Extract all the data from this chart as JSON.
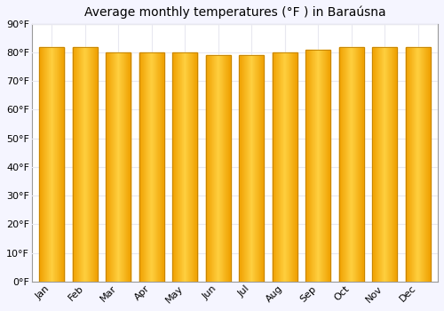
{
  "title": "Average monthly temperatures (°F ) in Baraúsna",
  "months": [
    "Jan",
    "Feb",
    "Mar",
    "Apr",
    "May",
    "Jun",
    "Jul",
    "Aug",
    "Sep",
    "Oct",
    "Nov",
    "Dec"
  ],
  "values": [
    82,
    82,
    80,
    80,
    80,
    79,
    79,
    80,
    81,
    82,
    82,
    82
  ],
  "ylim": [
    0,
    90
  ],
  "yticks": [
    0,
    10,
    20,
    30,
    40,
    50,
    60,
    70,
    80,
    90
  ],
  "ytick_labels": [
    "0°F",
    "10°F",
    "20°F",
    "30°F",
    "40°F",
    "50°F",
    "60°F",
    "70°F",
    "80°F",
    "90°F"
  ],
  "bar_color_left": "#F0A000",
  "bar_color_center": "#FFD040",
  "bar_color_right": "#F0A000",
  "bar_edge_color": "#C08000",
  "background_color": "#f5f5ff",
  "plot_bg_color": "#ffffff",
  "title_fontsize": 10,
  "tick_fontsize": 8,
  "grid_color": "#e8e8f0"
}
